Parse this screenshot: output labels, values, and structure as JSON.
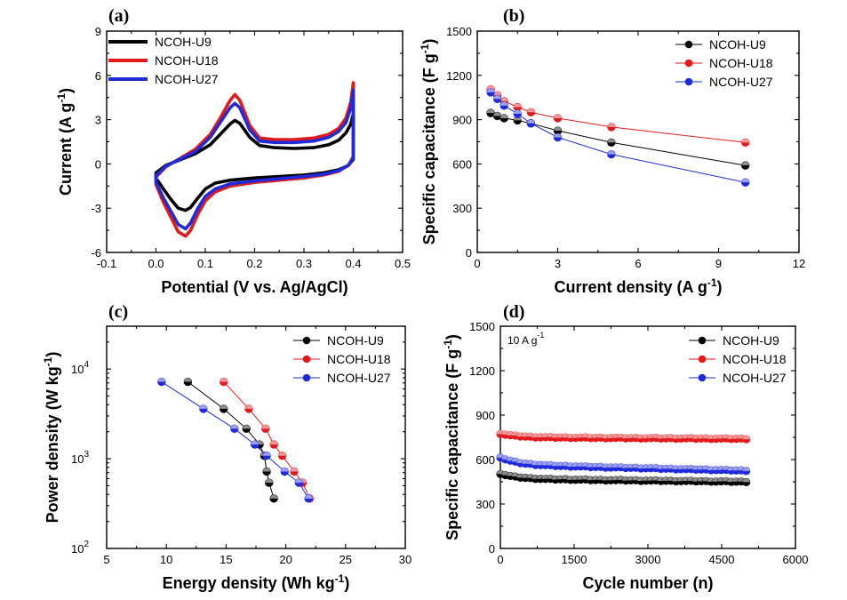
{
  "colors": {
    "U9": "#000000",
    "U18": "#e31a1c",
    "U27": "#1f2bdb"
  },
  "chart_data": [
    {
      "id": "a",
      "panel_label": "(a)",
      "type": "line",
      "xlabel": "Potential (V vs. Ag/AgCl)",
      "ylabel": "Current (A g",
      "ylabel_sup": "-1",
      "ylabel_end": ")",
      "xlim": [
        -0.1,
        0.5
      ],
      "ylim": [
        -6,
        9
      ],
      "xticks": [
        "-0.1",
        "0.0",
        "0.1",
        "0.2",
        "0.3",
        "0.4",
        "0.5"
      ],
      "xtick_values": [
        -0.1,
        0.0,
        0.1,
        0.2,
        0.3,
        0.4,
        0.5
      ],
      "yticks": [
        "-6",
        "-3",
        "0",
        "3",
        "6",
        "9"
      ],
      "ytick_values": [
        -6,
        -3,
        0,
        3,
        6,
        9
      ],
      "legend": [
        "NCOH-U9",
        "NCOH-U18",
        "NCOH-U27"
      ],
      "series": [
        {
          "name": "NCOH-U9",
          "color": "U9",
          "x": [
            0.0,
            0.02,
            0.05,
            0.08,
            0.11,
            0.13,
            0.15,
            0.16,
            0.17,
            0.19,
            0.21,
            0.24,
            0.28,
            0.32,
            0.35,
            0.37,
            0.385,
            0.395,
            0.4,
            0.4,
            0.39,
            0.37,
            0.34,
            0.3,
            0.25,
            0.2,
            0.15,
            0.12,
            0.1,
            0.085,
            0.07,
            0.06,
            0.045,
            0.03,
            0.015,
            0.005,
            0.0,
            0.0
          ],
          "y": [
            -0.6,
            -0.1,
            0.3,
            0.7,
            1.3,
            2.0,
            2.7,
            2.95,
            2.75,
            1.8,
            1.25,
            1.1,
            1.05,
            1.1,
            1.3,
            1.6,
            2.1,
            2.7,
            3.4,
            0.3,
            -0.1,
            -0.4,
            -0.6,
            -0.75,
            -0.85,
            -0.95,
            -1.1,
            -1.3,
            -1.7,
            -2.3,
            -2.95,
            -3.15,
            -3.0,
            -2.4,
            -1.7,
            -1.2,
            -1.0,
            -0.6
          ]
        },
        {
          "name": "NCOH-U18",
          "color": "U18",
          "x": [
            0.0,
            0.02,
            0.05,
            0.08,
            0.11,
            0.13,
            0.15,
            0.16,
            0.17,
            0.19,
            0.21,
            0.24,
            0.28,
            0.32,
            0.35,
            0.37,
            0.385,
            0.395,
            0.4,
            0.4,
            0.39,
            0.37,
            0.34,
            0.3,
            0.25,
            0.2,
            0.15,
            0.12,
            0.1,
            0.085,
            0.07,
            0.06,
            0.045,
            0.03,
            0.015,
            0.005,
            0.0,
            0.0
          ],
          "y": [
            -0.9,
            -0.2,
            0.4,
            1.0,
            2.0,
            3.1,
            4.3,
            4.7,
            4.3,
            2.6,
            1.75,
            1.65,
            1.65,
            1.75,
            2.0,
            2.4,
            3.1,
            4.2,
            5.5,
            0.5,
            -0.1,
            -0.5,
            -0.75,
            -0.95,
            -1.1,
            -1.25,
            -1.5,
            -1.9,
            -2.5,
            -3.4,
            -4.5,
            -4.9,
            -4.6,
            -3.6,
            -2.6,
            -1.8,
            -1.4,
            -0.9
          ]
        },
        {
          "name": "NCOH-U27",
          "color": "U27",
          "x": [
            0.0,
            0.02,
            0.05,
            0.08,
            0.11,
            0.13,
            0.15,
            0.16,
            0.17,
            0.19,
            0.21,
            0.24,
            0.28,
            0.32,
            0.35,
            0.37,
            0.385,
            0.395,
            0.4,
            0.4,
            0.39,
            0.37,
            0.34,
            0.3,
            0.25,
            0.2,
            0.15,
            0.12,
            0.1,
            0.085,
            0.07,
            0.06,
            0.045,
            0.03,
            0.015,
            0.005,
            0.0,
            0.0
          ],
          "y": [
            -0.8,
            -0.15,
            0.35,
            0.85,
            1.8,
            2.8,
            3.8,
            4.1,
            3.8,
            2.3,
            1.55,
            1.45,
            1.45,
            1.55,
            1.8,
            2.2,
            2.8,
            3.8,
            5.0,
            0.4,
            -0.1,
            -0.45,
            -0.7,
            -0.85,
            -1.0,
            -1.15,
            -1.35,
            -1.7,
            -2.2,
            -3.0,
            -4.0,
            -4.4,
            -4.1,
            -3.2,
            -2.3,
            -1.6,
            -1.25,
            -0.8
          ]
        }
      ]
    },
    {
      "id": "b",
      "panel_label": "(b)",
      "type": "line",
      "xlabel": "Current density (A g",
      "xlabel_sup": "-1",
      "xlabel_end": ")",
      "ylabel": "Specific capacitance (F g",
      "ylabel_sup": "-1",
      "ylabel_end": ")",
      "xlim": [
        0,
        12
      ],
      "ylim": [
        0,
        1500
      ],
      "xticks": [
        "0",
        "3",
        "6",
        "9",
        "12"
      ],
      "xtick_values": [
        0,
        3,
        6,
        9,
        12
      ],
      "yticks": [
        "0",
        "300",
        "600",
        "900",
        "1200",
        "1500"
      ],
      "ytick_values": [
        0,
        300,
        600,
        900,
        1200,
        1500
      ],
      "legend": [
        "NCOH-U9",
        "NCOH-U18",
        "NCOH-U27"
      ],
      "series": [
        {
          "name": "NCOH-U9",
          "color": "U9",
          "x": [
            0.5,
            0.75,
            1,
            1.5,
            2,
            3,
            5,
            10
          ],
          "y": [
            945,
            925,
            910,
            895,
            875,
            825,
            745,
            590
          ]
        },
        {
          "name": "NCOH-U18",
          "color": "U18",
          "x": [
            0.5,
            0.75,
            1,
            1.5,
            2,
            3,
            5,
            10
          ],
          "y": [
            1105,
            1065,
            1025,
            985,
            950,
            910,
            850,
            745
          ]
        },
        {
          "name": "NCOH-U27",
          "color": "U27",
          "x": [
            0.5,
            0.75,
            1,
            1.5,
            2,
            3,
            5,
            10
          ],
          "y": [
            1085,
            1040,
            995,
            940,
            875,
            780,
            665,
            475
          ]
        }
      ]
    },
    {
      "id": "c",
      "panel_label": "(c)",
      "type": "line",
      "xlabel": "Energy density (Wh kg",
      "xlabel_sup": "-1",
      "xlabel_end": ")",
      "ylabel": "Power density (W kg",
      "ylabel_sup": "-1",
      "ylabel_end": ")",
      "yscale": "log",
      "xlim": [
        5,
        30
      ],
      "ylim": [
        100,
        30000
      ],
      "xticks": [
        "5",
        "10",
        "15",
        "20",
        "25",
        "30"
      ],
      "xtick_values": [
        5,
        10,
        15,
        20,
        25,
        30
      ],
      "yticks": [
        "10",
        "10",
        "10"
      ],
      "ytick_sups": [
        "2",
        "3",
        "4"
      ],
      "ytick_values": [
        100,
        1000,
        10000
      ],
      "legend": [
        "NCOH-U9",
        "NCOH-U18",
        "NCOH-U27"
      ],
      "series": [
        {
          "name": "NCOH-U9",
          "color": "U9",
          "x": [
            11.8,
            14.8,
            16.7,
            17.8,
            18.2,
            18.4,
            18.6,
            19.0
          ],
          "y": [
            7200,
            3600,
            2160,
            1440,
            1080,
            720,
            540,
            360
          ]
        },
        {
          "name": "NCOH-U18",
          "color": "U18",
          "x": [
            14.8,
            16.9,
            18.3,
            19.0,
            19.7,
            20.7,
            21.4,
            22.0
          ],
          "y": [
            7200,
            3600,
            2160,
            1440,
            1080,
            720,
            540,
            360
          ]
        },
        {
          "name": "NCOH-U27",
          "color": "U27",
          "x": [
            9.6,
            13.1,
            15.7,
            17.4,
            18.4,
            19.9,
            21.1,
            21.9
          ],
          "y": [
            7200,
            3600,
            2160,
            1440,
            1080,
            720,
            540,
            360
          ]
        }
      ]
    },
    {
      "id": "d",
      "panel_label": "(d)",
      "type": "line",
      "annotation": "10 A g",
      "annotation_sup": "-1",
      "xlabel": "Cycle number (n)",
      "ylabel": "Specific capacitance (F g",
      "ylabel_sup": "-1",
      "ylabel_end": ")",
      "xlim": [
        0,
        6000
      ],
      "ylim": [
        0,
        1500
      ],
      "xticks": [
        "0",
        "1500",
        "3000",
        "4500",
        "6000"
      ],
      "xtick_values": [
        0,
        1500,
        3000,
        4500,
        6000
      ],
      "yticks": [
        "0",
        "300",
        "600",
        "900",
        "1200",
        "1500"
      ],
      "ytick_values": [
        0,
        300,
        600,
        900,
        1200,
        1500
      ],
      "legend": [
        "NCOH-U9",
        "NCOH-U18",
        "NCOH-U27"
      ],
      "series": [
        {
          "name": "NCOH-U9",
          "color": "U9",
          "start": 505,
          "plateau": 470,
          "end": 450,
          "n_points": 50,
          "x_end": 5000
        },
        {
          "name": "NCOH-U18",
          "color": "U18",
          "start": 775,
          "plateau": 750,
          "end": 740,
          "n_points": 50,
          "x_end": 5000
        },
        {
          "name": "NCOH-U27",
          "color": "U27",
          "start": 615,
          "plateau": 565,
          "end": 525,
          "n_points": 50,
          "x_end": 5000
        }
      ]
    }
  ]
}
